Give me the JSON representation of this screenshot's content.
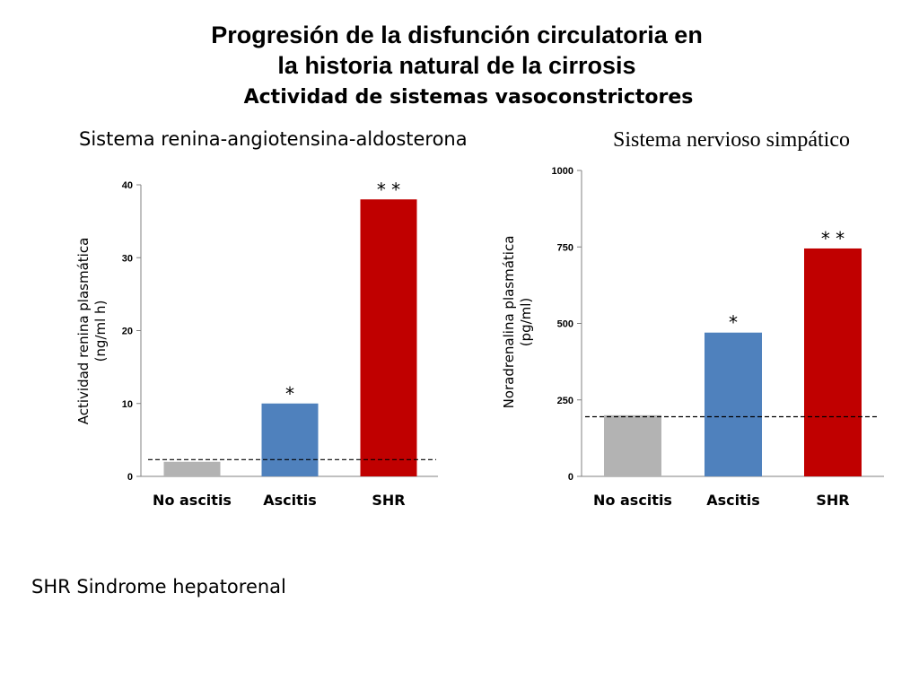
{
  "slide": {
    "title_line1": "Progresión de la disfunción circulatoria en",
    "title_line2": "la historia natural de la cirrosis",
    "subtitle": "Actividad de sistemas vasoconstrictores",
    "footnote": "SHR Sindrome hepatorenal"
  },
  "chart_data": [
    {
      "type": "bar",
      "title": "Sistema renina-angiotensina-aldosterona",
      "ylabel_line1": "Actividad renina plasmática",
      "ylabel_line2": "(ng/ml h)",
      "categories": [
        "No ascitis",
        "Ascitis",
        "SHR"
      ],
      "values": [
        2,
        10,
        38
      ],
      "colors": [
        "#b3b3b3",
        "#4f81bd",
        "#c00000"
      ],
      "significance": [
        "",
        "*",
        "* *"
      ],
      "ylim": [
        0,
        40
      ],
      "yticks": [
        0,
        10,
        20,
        30,
        40
      ],
      "reference_line": 2.3,
      "grid": false
    },
    {
      "type": "bar",
      "title": "Sistema nervioso simpático",
      "ylabel_line1": "Noradrenalina plasmática",
      "ylabel_line2": "(pg/ml)",
      "categories": [
        "No ascitis",
        "Ascitis",
        "SHR"
      ],
      "values": [
        200,
        470,
        745
      ],
      "colors": [
        "#b3b3b3",
        "#4f81bd",
        "#c00000"
      ],
      "significance": [
        "",
        "*",
        "* *"
      ],
      "ylim": [
        0,
        1000
      ],
      "yticks": [
        0,
        250,
        500,
        750,
        1000
      ],
      "reference_line": 195,
      "grid": false
    }
  ]
}
